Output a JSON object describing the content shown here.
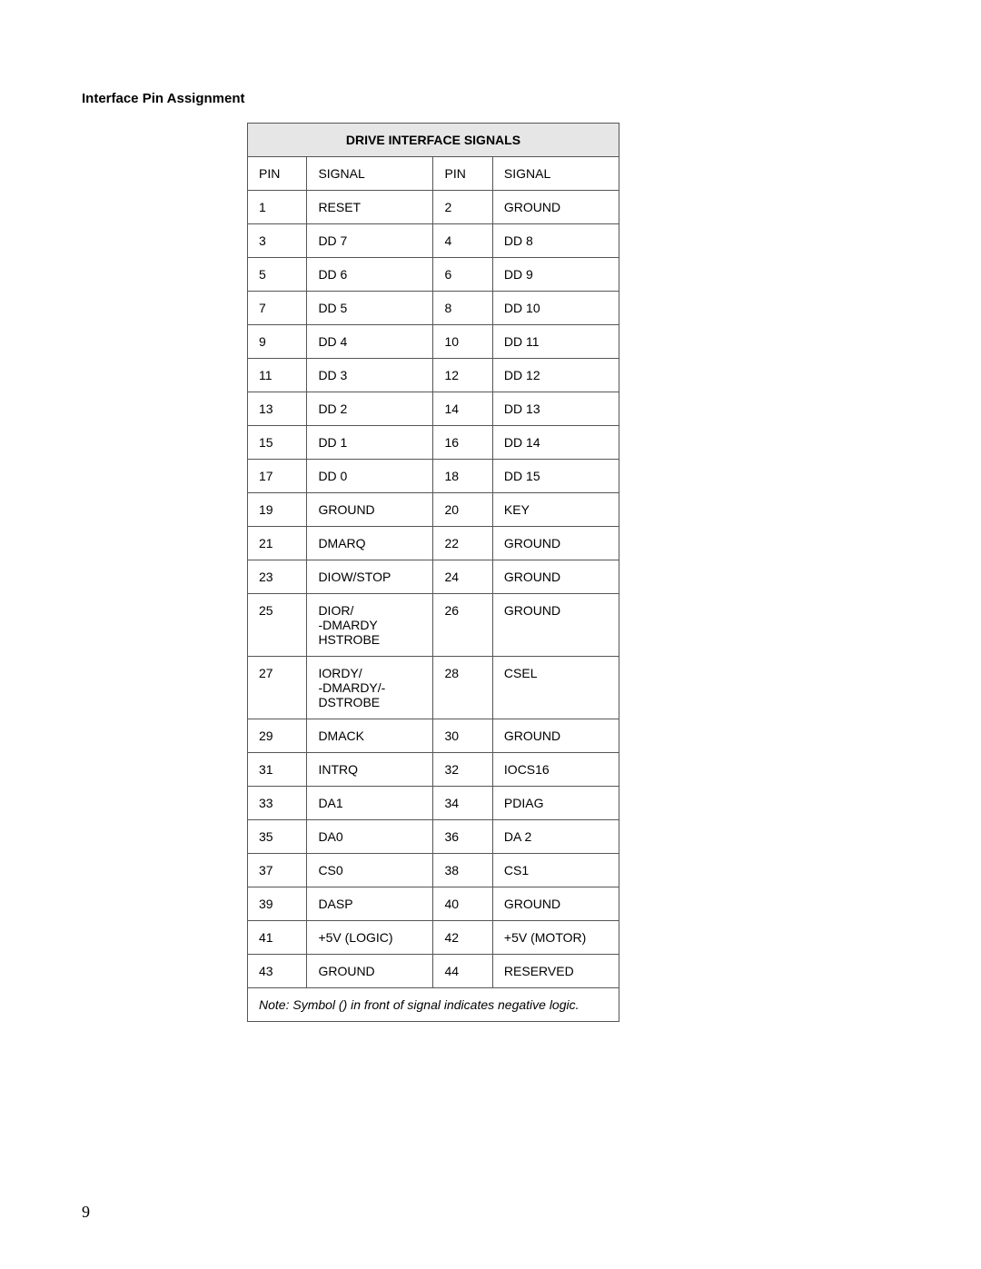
{
  "section_title": "Interface Pin Assignment",
  "table": {
    "title": "DRIVE INTERFACE SIGNALS",
    "columns": [
      "PIN",
      "SIGNAL",
      "PIN",
      "SIGNAL"
    ],
    "rows": [
      [
        "1",
        "RESET",
        "2",
        "GROUND"
      ],
      [
        "3",
        "DD 7",
        "4",
        "DD 8"
      ],
      [
        "5",
        "DD 6",
        "6",
        "DD 9"
      ],
      [
        "7",
        "DD 5",
        "8",
        "DD 10"
      ],
      [
        "9",
        "DD 4",
        "10",
        "DD 11"
      ],
      [
        "11",
        "DD 3",
        "12",
        "DD 12"
      ],
      [
        "13",
        "DD 2",
        "14",
        "DD 13"
      ],
      [
        "15",
        "DD 1",
        "16",
        "DD 14"
      ],
      [
        "17",
        "DD 0",
        "18",
        "DD 15"
      ],
      [
        "19",
        "GROUND",
        "20",
        "KEY"
      ],
      [
        "21",
        "DMARQ",
        "22",
        "GROUND"
      ],
      [
        "23",
        "DIOW/STOP",
        "24",
        "GROUND"
      ],
      [
        "25",
        "DIOR/\n-DMARDY\nHSTROBE",
        "26",
        "GROUND"
      ],
      [
        "27",
        "IORDY/\n-DMARDY/-\nDSTROBE",
        "28",
        "CSEL"
      ],
      [
        "29",
        "DMACK",
        "30",
        "GROUND"
      ],
      [
        "31",
        "INTRQ",
        "32",
        "IOCS16"
      ],
      [
        "33",
        "DA1",
        "34",
        "PDIAG"
      ],
      [
        "35",
        "DA0",
        "36",
        "DA 2"
      ],
      [
        "37",
        "CS0",
        "38",
        "CS1"
      ],
      [
        "39",
        "DASP",
        "40",
        "GROUND"
      ],
      [
        "41",
        "+5V (LOGIC)",
        "42",
        "+5V (MOTOR)"
      ],
      [
        "43",
        "GROUND",
        "44",
        "RESERVED"
      ]
    ],
    "note": "Note: Symbol () in front of signal indicates negative logic."
  },
  "page_number": "9",
  "colors": {
    "header_bg": "#e6e6e6",
    "border": "#555555",
    "text": "#000000",
    "page_bg": "#ffffff"
  },
  "typography": {
    "body_fontsize_pt": 11,
    "title_fontsize_pt": 11,
    "font_family": "Arial"
  }
}
